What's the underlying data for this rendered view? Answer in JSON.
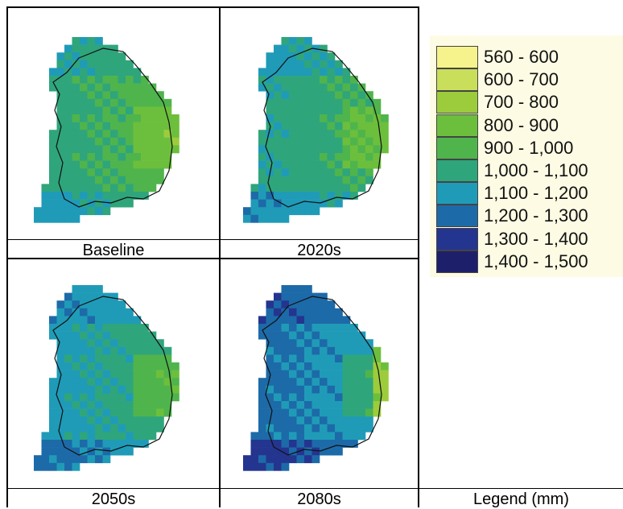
{
  "panels": [
    {
      "id": "baseline",
      "caption": "Baseline",
      "variant": 0
    },
    {
      "id": "2020s",
      "caption": "2020s",
      "variant": 1
    },
    {
      "id": "2050s",
      "caption": "2050s",
      "variant": 2
    },
    {
      "id": "2080s",
      "caption": "2080s",
      "variant": 3
    }
  ],
  "legend": {
    "title": "Legend (mm)",
    "classes": [
      {
        "label": "560 - 600",
        "color": "#f6f28c"
      },
      {
        "label": "600 - 700",
        "color": "#c9de5a"
      },
      {
        "label": "700 - 800",
        "color": "#9ccc3c"
      },
      {
        "label": "800 - 900",
        "color": "#6cbf3c"
      },
      {
        "label": "900 - 1,000",
        "color": "#4fb44c"
      },
      {
        "label": "1,000 - 1,100",
        "color": "#2fa57c"
      },
      {
        "label": "1,100 - 1,200",
        "color": "#1f9bb8"
      },
      {
        "label": "1,200 - 1,300",
        "color": "#1d6aa8"
      },
      {
        "label": "1,300 - 1,400",
        "color": "#24358f"
      },
      {
        "label": "1,400 - 1,500",
        "color": "#1e1f6b"
      }
    ]
  }
}
